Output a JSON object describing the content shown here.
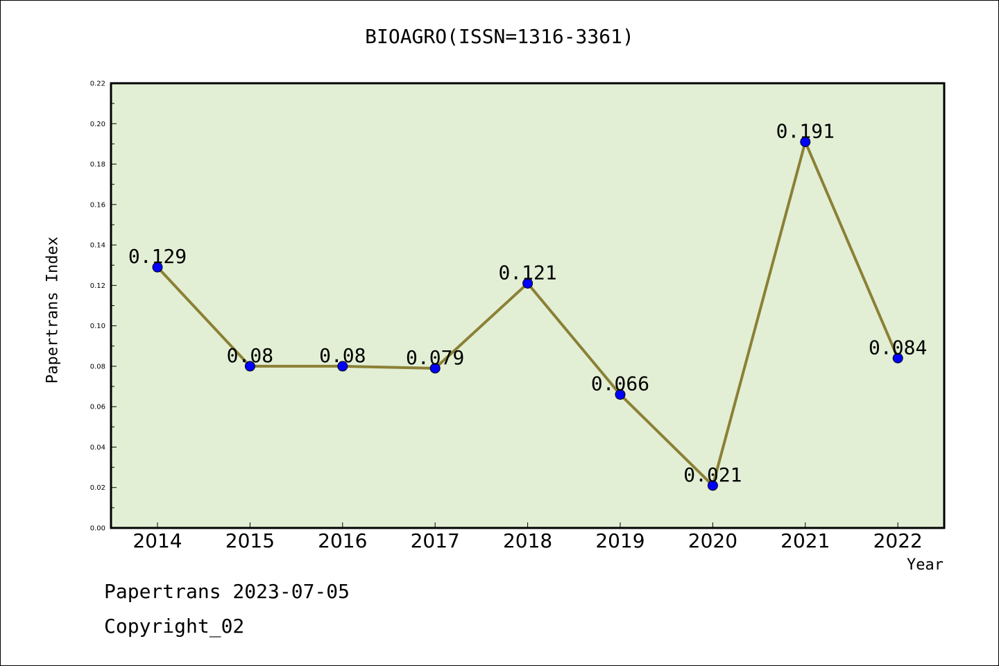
{
  "chart_data": {
    "type": "line",
    "title": "BIOAGRO(ISSN=1316-3361)",
    "xlabel": "Year",
    "ylabel": "Papertrans Index",
    "categories": [
      "2014",
      "2015",
      "2016",
      "2017",
      "2018",
      "2019",
      "2020",
      "2021",
      "2022"
    ],
    "values": [
      0.129,
      0.08,
      0.08,
      0.079,
      0.121,
      0.066,
      0.021,
      0.191,
      0.084
    ],
    "data_labels": [
      "0.129",
      "0.08",
      "0.08",
      "0.079",
      "0.121",
      "0.066",
      "0.021",
      "0.191",
      "0.084"
    ],
    "ylim": [
      0,
      0.22
    ],
    "yticks": [
      "0.00",
      "0.02",
      "0.04",
      "0.06",
      "0.08",
      "0.10",
      "0.12",
      "0.14",
      "0.16",
      "0.18",
      "0.20",
      "0.22"
    ],
    "grid": false,
    "colors": {
      "plot_background": "#e2efd5",
      "line": "#8b8035",
      "marker": "#0000ff"
    }
  },
  "footer": {
    "line1": "Papertrans 2023-07-05",
    "line2": "Copyright_02"
  }
}
